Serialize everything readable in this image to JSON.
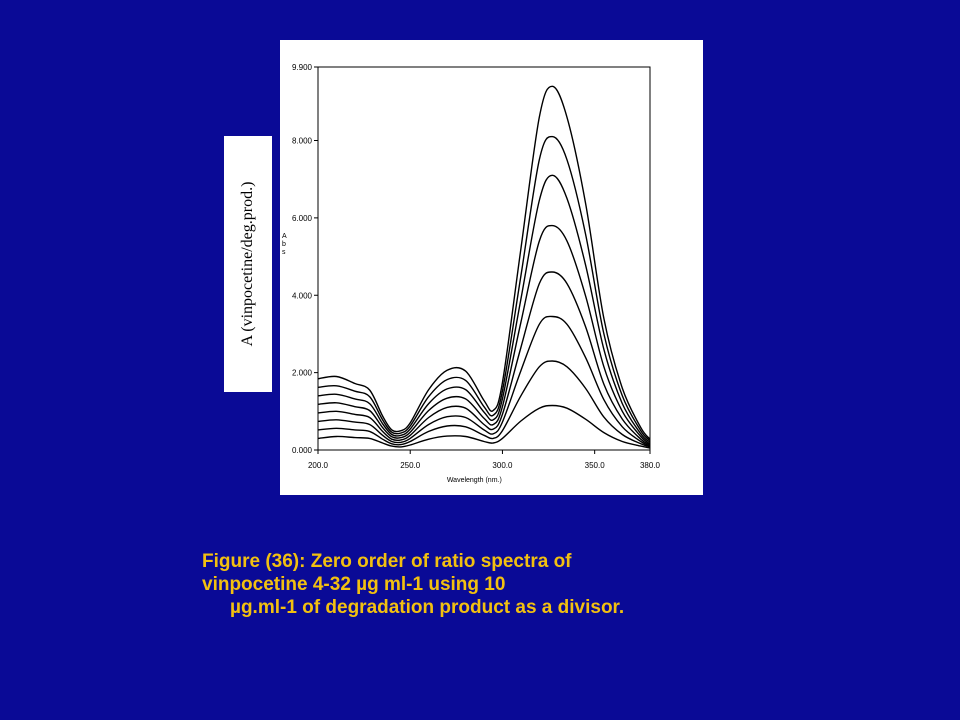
{
  "colors": {
    "background": "#0a0a96",
    "caption": "#f2c010",
    "panel": "#ffffff",
    "plot_line": "#000000"
  },
  "ylabel_box": {
    "text": "A (vinpocetine/deg.prod.)"
  },
  "caption": {
    "line1": "Figure (36): Zero order of ratio spectra of",
    "line2": "vinpocetine 4-32 µg ml-1  using 10",
    "line3": "µg.ml-1 of degradation product as a divisor."
  },
  "chart_data": {
    "type": "line",
    "title": "",
    "xlabel": "Wavelength (nm.)",
    "ylabel": "Abs",
    "xlim": [
      200,
      380
    ],
    "ylim": [
      0,
      9.9
    ],
    "x_ticks": [
      "200.0",
      "250.0",
      "300.0",
      "350.0",
      "380.0"
    ],
    "y_ticks": [
      "0.000",
      "2.000",
      "4.000",
      "6.000",
      "8.000",
      "9.900"
    ],
    "grid": false,
    "x": [
      200,
      210,
      220,
      228,
      235,
      240,
      245,
      250,
      260,
      270,
      280,
      290,
      295,
      300,
      310,
      320,
      327,
      335,
      345,
      355,
      365,
      375,
      380
    ],
    "series": [
      {
        "values": [
          0.3,
          0.35,
          0.32,
          0.3,
          0.18,
          0.1,
          0.08,
          0.13,
          0.28,
          0.36,
          0.35,
          0.22,
          0.18,
          0.3,
          0.75,
          1.08,
          1.15,
          1.08,
          0.8,
          0.45,
          0.22,
          0.1,
          0.05
        ]
      },
      {
        "values": [
          0.52,
          0.56,
          0.52,
          0.48,
          0.28,
          0.16,
          0.14,
          0.22,
          0.48,
          0.62,
          0.6,
          0.38,
          0.3,
          0.5,
          1.4,
          2.15,
          2.3,
          2.15,
          1.6,
          0.85,
          0.4,
          0.16,
          0.08
        ]
      },
      {
        "values": [
          0.74,
          0.78,
          0.72,
          0.66,
          0.38,
          0.22,
          0.2,
          0.3,
          0.66,
          0.86,
          0.84,
          0.52,
          0.42,
          0.72,
          2.05,
          3.25,
          3.45,
          3.25,
          2.4,
          1.3,
          0.6,
          0.22,
          0.1
        ]
      },
      {
        "values": [
          0.96,
          1.0,
          0.92,
          0.84,
          0.48,
          0.28,
          0.26,
          0.38,
          0.84,
          1.1,
          1.08,
          0.66,
          0.54,
          0.92,
          2.65,
          4.3,
          4.6,
          4.3,
          3.2,
          1.7,
          0.8,
          0.28,
          0.13
        ]
      },
      {
        "values": [
          1.18,
          1.22,
          1.12,
          1.02,
          0.58,
          0.34,
          0.32,
          0.46,
          1.02,
          1.34,
          1.32,
          0.82,
          0.66,
          1.12,
          3.3,
          5.4,
          5.8,
          5.4,
          4.0,
          2.15,
          1.0,
          0.35,
          0.16
        ]
      },
      {
        "values": [
          1.4,
          1.44,
          1.32,
          1.2,
          0.68,
          0.4,
          0.38,
          0.54,
          1.2,
          1.58,
          1.56,
          0.98,
          0.78,
          1.32,
          3.9,
          6.45,
          7.1,
          6.5,
          4.8,
          2.6,
          1.2,
          0.42,
          0.2
        ]
      },
      {
        "values": [
          1.62,
          1.66,
          1.52,
          1.38,
          0.78,
          0.46,
          0.44,
          0.62,
          1.38,
          1.82,
          1.8,
          1.12,
          0.9,
          1.52,
          4.5,
          7.5,
          8.1,
          7.5,
          5.6,
          3.0,
          1.4,
          0.5,
          0.24
        ]
      },
      {
        "values": [
          1.84,
          1.9,
          1.72,
          1.55,
          0.88,
          0.52,
          0.5,
          0.7,
          1.56,
          2.06,
          2.04,
          1.28,
          1.02,
          1.74,
          5.2,
          8.6,
          9.4,
          8.6,
          6.4,
          3.4,
          1.6,
          0.58,
          0.28
        ]
      }
    ]
  }
}
